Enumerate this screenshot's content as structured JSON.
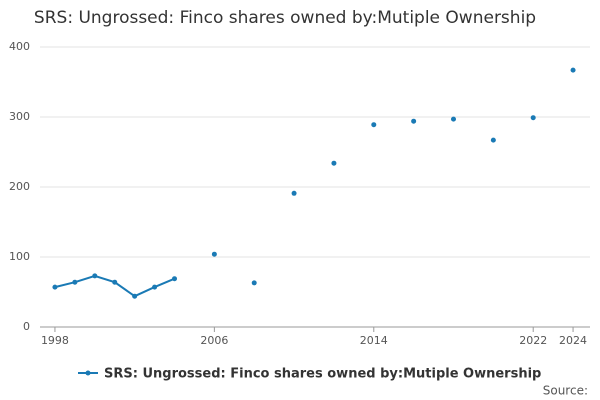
{
  "chart_data": {
    "type": "line",
    "title": "SRS: Ungrossed: Finco shares owned by:Mutiple Ownership",
    "x": [
      1998,
      1999,
      2000,
      2001,
      2002,
      2003,
      2004,
      2005,
      2006,
      2007,
      2008,
      2009,
      2010,
      2011,
      2012,
      2013,
      2014,
      2015,
      2016,
      2017,
      2018,
      2019,
      2020,
      2021,
      2022,
      2023,
      2024
    ],
    "series": [
      {
        "name": "SRS: Ungrossed: Finco shares owned by:Mutiple Ownership",
        "color": "#1a7ab5",
        "values": [
          57,
          64,
          73,
          64,
          44,
          57,
          69,
          null,
          104,
          null,
          63,
          null,
          191,
          null,
          234,
          null,
          289,
          null,
          294,
          null,
          297,
          null,
          267,
          null,
          299,
          null,
          367
        ]
      }
    ],
    "xlim": [
      1997.25,
      2024.85
    ],
    "xticks": [
      1998,
      2006,
      2014,
      2022,
      2024
    ],
    "ylim": [
      0,
      400
    ],
    "yticks": [
      0,
      100,
      200,
      300,
      400
    ],
    "grid": true,
    "source": "Source:"
  }
}
